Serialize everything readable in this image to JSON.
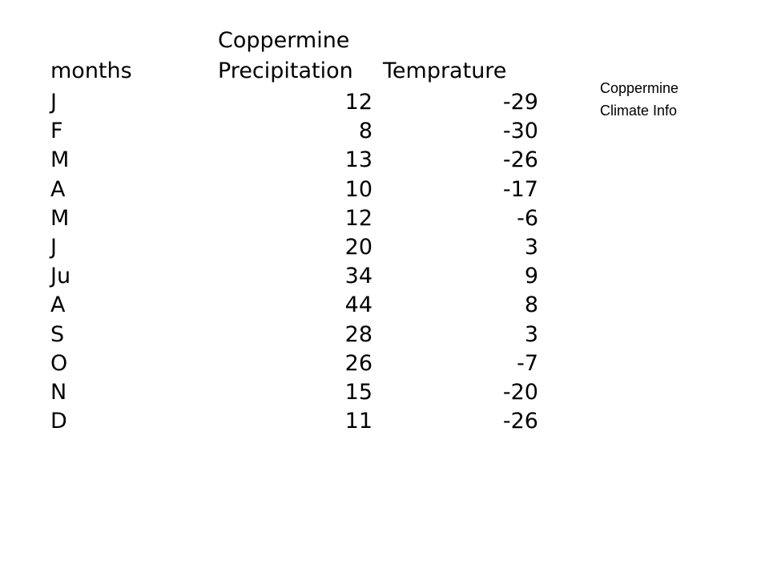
{
  "table": {
    "header": [
      "months",
      "Coppermine\nPrecipitation",
      "Temprature"
    ],
    "rows": [
      [
        "J",
        12,
        -29
      ],
      [
        "F",
        8,
        -30
      ],
      [
        "M",
        13,
        -26
      ],
      [
        "A",
        10,
        -17
      ],
      [
        "M",
        12,
        -6
      ],
      [
        "J",
        20,
        3
      ],
      [
        "Ju",
        34,
        9
      ],
      [
        "A",
        44,
        8
      ],
      [
        "S",
        28,
        3
      ],
      [
        "O",
        26,
        -7
      ],
      [
        "N",
        15,
        -20
      ],
      [
        "D",
        11,
        -26
      ]
    ]
  },
  "side_note": "Coppermine\nClimate Info"
}
